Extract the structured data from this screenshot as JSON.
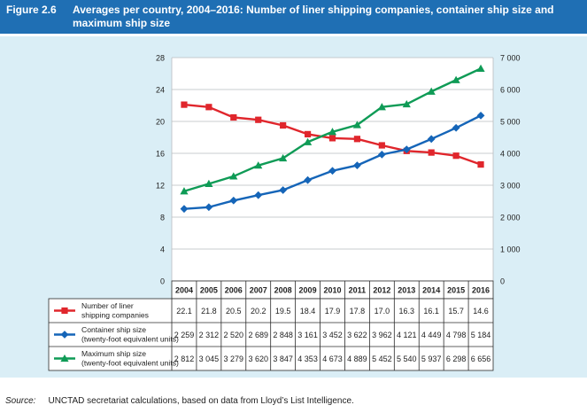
{
  "figure": {
    "label": "Figure 2.6",
    "title": "Averages per country, 2004–2016: Number of liner shipping companies, container ship size and maximum ship size"
  },
  "source": {
    "label": "Source:",
    "text": "UNCTAD secretariat calculations, based on data from Lloyd’s List Intelligence."
  },
  "chart_data": {
    "type": "line",
    "categories": [
      "2004",
      "2005",
      "2006",
      "2007",
      "2008",
      "2009",
      "2010",
      "2011",
      "2012",
      "2013",
      "2014",
      "2015",
      "2016"
    ],
    "y_left": {
      "ylim": [
        0,
        28
      ],
      "ticks": [
        "0",
        "4",
        "8",
        "12",
        "16",
        "20",
        "24",
        "28"
      ],
      "tick_values": [
        0,
        4,
        8,
        12,
        16,
        20,
        24,
        28
      ]
    },
    "y_right": {
      "ylim": [
        0,
        7000
      ],
      "ticks": [
        "0",
        "1 000",
        "2 000",
        "3 000",
        "4 000",
        "5 000",
        "6 000",
        "7 000"
      ],
      "tick_values": [
        0,
        1000,
        2000,
        3000,
        4000,
        5000,
        6000,
        7000
      ]
    },
    "grid": true,
    "series": [
      {
        "key": "liners",
        "name_line1": "Number of liner",
        "name_line2": "shipping companies",
        "axis": "left",
        "marker": "square",
        "color": "#e0262c",
        "values": [
          22.1,
          21.8,
          20.5,
          20.2,
          19.5,
          18.4,
          17.9,
          17.8,
          17.0,
          16.3,
          16.1,
          15.7,
          14.6
        ],
        "labels": [
          "22.1",
          "21.8",
          "20.5",
          "20.2",
          "19.5",
          "18.4",
          "17.9",
          "17.8",
          "17.0",
          "16.3",
          "16.1",
          "15.7",
          "14.6"
        ]
      },
      {
        "key": "container",
        "name_line1": "Container ship size",
        "name_line2": "(twenty-foot equivalent units)",
        "axis": "right",
        "marker": "diamond",
        "color": "#1565b8",
        "values": [
          2259,
          2312,
          2520,
          2689,
          2848,
          3161,
          3452,
          3622,
          3962,
          4121,
          4449,
          4798,
          5184
        ],
        "labels": [
          "2 259",
          "2 312",
          "2 520",
          "2 689",
          "2 848",
          "3 161",
          "3 452",
          "3 622",
          "3 962",
          "4 121",
          "4 449",
          "4 798",
          "5 184"
        ]
      },
      {
        "key": "maximum",
        "name_line1": "Maximum ship size",
        "name_line2": "(twenty-foot equivalent units)",
        "axis": "right",
        "marker": "triangle",
        "color": "#0f9b56",
        "values": [
          2812,
          3045,
          3279,
          3620,
          3847,
          4353,
          4673,
          4889,
          5452,
          5540,
          5937,
          6298,
          6656
        ],
        "labels": [
          "2 812",
          "3 045",
          "3 279",
          "3 620",
          "3 847",
          "4 353",
          "4 673",
          "4 889",
          "5 452",
          "5 540",
          "5 937",
          "6 298",
          "6 656"
        ]
      }
    ]
  }
}
